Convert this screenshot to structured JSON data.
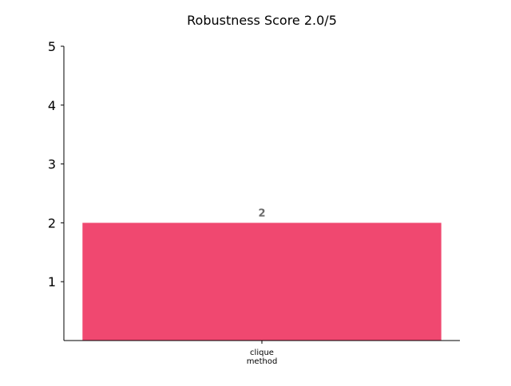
{
  "chart_data": {
    "type": "bar",
    "title": "Robustness Score 2.0/5",
    "categories": [
      "clique\nmethod"
    ],
    "values": [
      2
    ],
    "value_labels": [
      "2"
    ],
    "ylim": [
      0,
      5
    ],
    "yticks": [
      1,
      2,
      3,
      4,
      5
    ],
    "xlabel": "",
    "ylabel": "",
    "grid": false,
    "legend": "none",
    "colors": {
      "bar": "#f04870",
      "value_label": "#6b6b6b",
      "axis": "#000000",
      "text": "#000000"
    }
  }
}
